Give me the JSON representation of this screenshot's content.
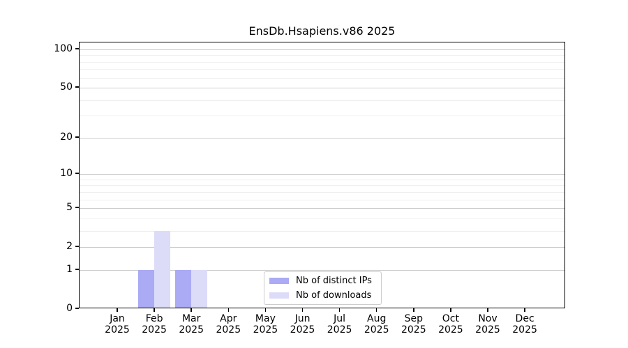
{
  "title": "EnsDb.Hsapiens.v86 2025",
  "chart_data": {
    "type": "bar",
    "title": "EnsDb.Hsapiens.v86 2025",
    "categories": [
      "Jan 2025",
      "Feb 2025",
      "Mar 2025",
      "Apr 2025",
      "May 2025",
      "Jun 2025",
      "Jul 2025",
      "Aug 2025",
      "Sep 2025",
      "Oct 2025",
      "Nov 2025",
      "Dec 2025"
    ],
    "series": [
      {
        "name": "Nb of distinct IPs",
        "color": "#aaaaf5",
        "values": [
          0,
          1,
          1,
          0,
          0,
          0,
          0,
          0,
          0,
          0,
          0,
          0
        ]
      },
      {
        "name": "Nb of downloads",
        "color": "#dcdcf8",
        "values": [
          0,
          3,
          1,
          0,
          0,
          0,
          0,
          0,
          0,
          0,
          0,
          0
        ]
      }
    ],
    "y_scale": "log1p",
    "y_major_ticks": [
      0,
      1,
      2,
      5,
      10,
      20,
      50,
      100
    ],
    "y_minor_ticks": [
      3,
      4,
      6,
      7,
      8,
      9,
      30,
      40,
      60,
      70,
      80,
      90
    ],
    "ylim": [
      0,
      113
    ],
    "xlabel": "",
    "ylabel": "",
    "grid": "horizontal-on",
    "legend_position": "bottom-center",
    "legend_entries": [
      "Nb of distinct IPs",
      "Nb of downloads"
    ]
  },
  "colors": {
    "background": "#ffffff",
    "axis": "#000000",
    "grid_major": "#cdcdcd",
    "grid_minor": "#efefef",
    "distinct_ips": "#aaaaf5",
    "downloads": "#dcdcf8",
    "legend_border": "#cccccc",
    "text": "#000000"
  }
}
